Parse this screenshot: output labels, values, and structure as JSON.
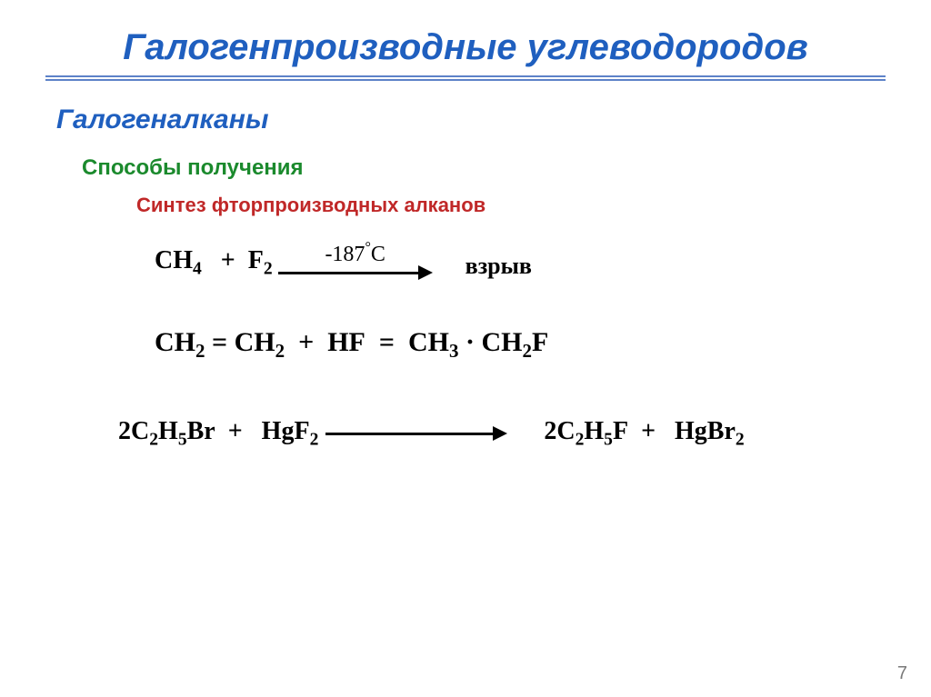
{
  "title": "Галогенпроизводные углеводородов",
  "subtitle": "Галогеналканы",
  "section_heading": "Способы получения",
  "subsection_heading": "Синтез фторпроизводных алканов",
  "colors": {
    "title": "#1f5fbf",
    "subtitle": "#1f5fbf",
    "section": "#1b8a2d",
    "subsection": "#c02828",
    "body_text": "#000000",
    "rule": "#5d82c8",
    "background": "#ffffff",
    "page_number": "#7a7a7a"
  },
  "font_sizes_pt": {
    "title": 30,
    "subtitle": 22,
    "section": 18,
    "subsection": 16,
    "equations": 21
  },
  "equations": [
    {
      "type": "reaction-arrow",
      "reactants": "CH₄   +  F₂",
      "condition_above_arrow": "-187°C",
      "product": "взрыв"
    },
    {
      "type": "inline-equation",
      "text": "CH₂ = CH₂  +  HF  =  CH₃ · CH₂F"
    },
    {
      "type": "reaction-arrow",
      "reactants": "2C₂H₅Br  +   HgF₂",
      "condition_above_arrow": "",
      "product": "2C₂H₅F  +   HgBr₂"
    }
  ],
  "eq1": {
    "reactants_html": "CH<sub>4</sub>&nbsp;&nbsp;&nbsp;+&nbsp;&nbsp;F<sub>2</sub>",
    "condition": "-187",
    "degree": "°",
    "cunit": "C",
    "product": "взрыв"
  },
  "eq2": {
    "html": "CH<sub>2</sub> = CH<sub>2</sub>&nbsp;&nbsp;+&nbsp;&nbsp;HF&nbsp;&nbsp;=&nbsp;&nbsp;CH<sub>3</sub> · CH<sub>2</sub>F"
  },
  "eq3": {
    "left_html": "2C<sub>2</sub>H<sub>5</sub>Br&nbsp;&nbsp;+&nbsp;&nbsp;&nbsp;HgF<sub>2</sub>",
    "right_html": "2C<sub>2</sub>H<sub>5</sub>F&nbsp;&nbsp;+&nbsp;&nbsp;&nbsp;HgBr<sub>2</sub>"
  },
  "page_number": "7"
}
